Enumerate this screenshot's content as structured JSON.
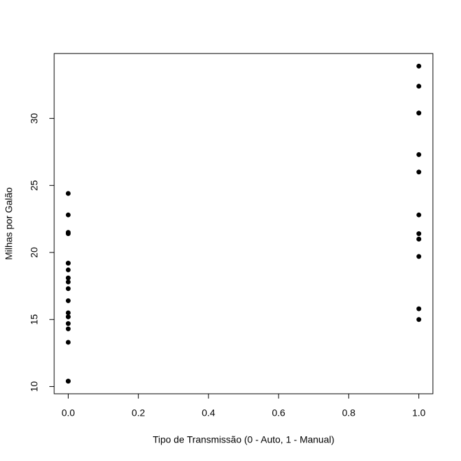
{
  "chart_data": {
    "type": "scatter",
    "x_label": "Tipo de Transmissão (0 - Auto, 1 - Manual)",
    "y_label": "Milhas por Galão",
    "series": [
      {
        "color": "#000000",
        "x": [
          0,
          0,
          0,
          0,
          0,
          0,
          0,
          0,
          0,
          0,
          0,
          0,
          0,
          0,
          0,
          0,
          0,
          0,
          0,
          1,
          1,
          1,
          1,
          1,
          1,
          1,
          1,
          1,
          1,
          1,
          1,
          1
        ],
        "values": [
          21.4,
          18.7,
          18.1,
          14.3,
          24.4,
          22.8,
          19.2,
          17.8,
          16.4,
          17.3,
          15.2,
          10.4,
          10.4,
          14.7,
          21.5,
          15.5,
          15.2,
          13.3,
          19.2,
          21.0,
          21.0,
          22.8,
          32.4,
          30.4,
          33.9,
          27.3,
          26.0,
          30.4,
          15.8,
          19.7,
          15.0,
          21.4
        ]
      }
    ],
    "xlim": [
      -0.04,
      1.04
    ],
    "xticks": [
      {
        "value": 0,
        "label": "0.0"
      },
      0.2,
      0.4,
      0.6,
      0.8,
      {
        "value": 1,
        "label": "1.0"
      }
    ],
    "ylim": [
      9.46,
      34.84
    ],
    "yticks": [
      10,
      15,
      20,
      25,
      30
    ]
  }
}
